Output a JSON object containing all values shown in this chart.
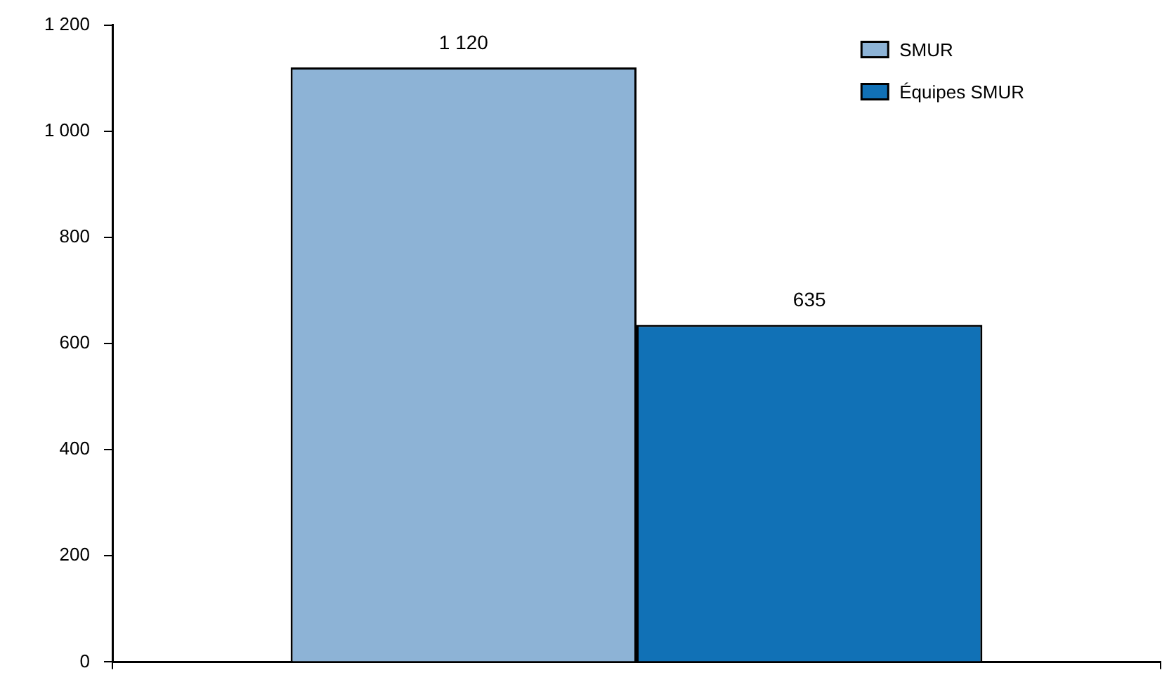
{
  "chart_data": {
    "type": "bar",
    "categories": [
      null
    ],
    "series": [
      {
        "name": "SMUR",
        "color": "#8db3d6",
        "values": [
          1120
        ],
        "value_labels": [
          "1 120"
        ]
      },
      {
        "name": "Équipes SMUR",
        "color": "#1171b6",
        "values": [
          635
        ],
        "value_labels": [
          "635"
        ]
      }
    ],
    "ylim": [
      0,
      1200
    ],
    "yticks": [
      0,
      200,
      400,
      600,
      800,
      {
        "value": 1000,
        "label": "1 000"
      },
      {
        "value": 1200,
        "label": "1 200"
      }
    ],
    "legend": "top right",
    "tick_labels": "y"
  }
}
